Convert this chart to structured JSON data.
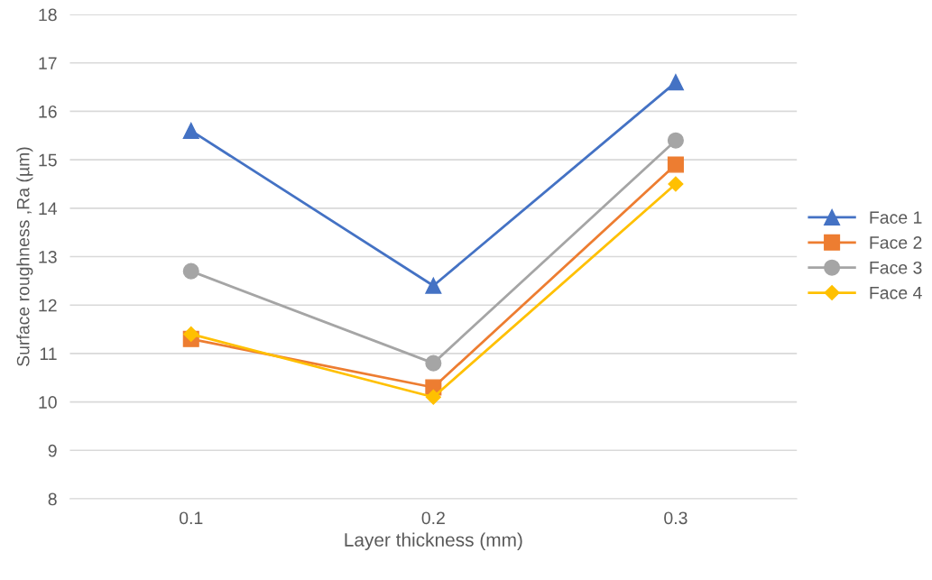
{
  "chart_data": {
    "type": "line",
    "xlabel": "Layer thickness (mm)",
    "ylabel": "Surface roughness ,Ra (µm)",
    "categories": [
      "0.1",
      "0.2",
      "0.3"
    ],
    "series": [
      {
        "name": "Face 1",
        "color": "#4472c4",
        "values": [
          15.6,
          12.4,
          16.6
        ],
        "marker": "triangle"
      },
      {
        "name": "Face 2",
        "color": "#ed7d31",
        "values": [
          11.3,
          10.3,
          14.9
        ],
        "marker": "square"
      },
      {
        "name": "Face 3",
        "color": "#a5a5a5",
        "values": [
          12.7,
          10.8,
          15.4
        ],
        "marker": "circle"
      },
      {
        "name": "Face 4",
        "color": "#ffc000",
        "values": [
          11.4,
          10.1,
          14.5
        ],
        "marker": "diamond"
      }
    ],
    "ylim": [
      8,
      18
    ],
    "yticks": [
      8,
      9,
      10,
      11,
      12,
      13,
      14,
      15,
      16,
      17,
      18
    ],
    "grid": "y",
    "legend": "right",
    "line_style": "solid"
  }
}
